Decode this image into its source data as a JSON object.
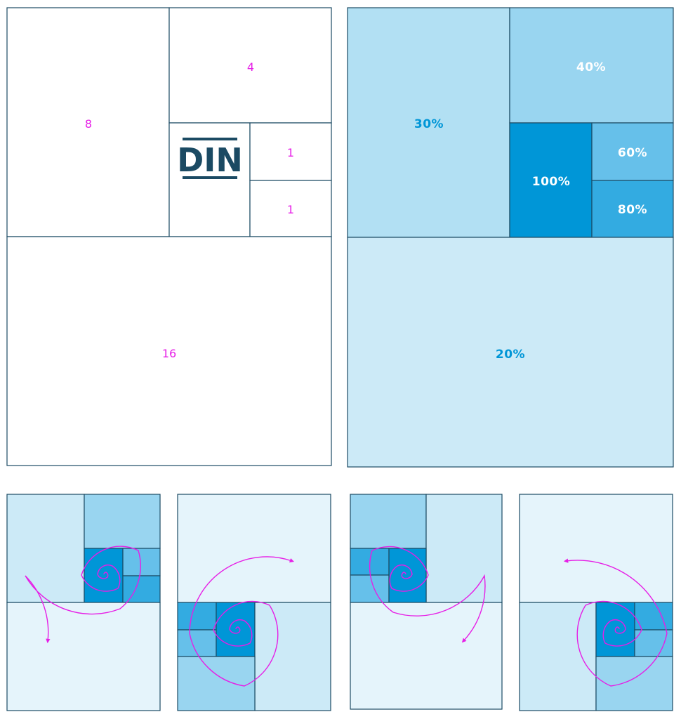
{
  "colors": {
    "line": "#1b4a63",
    "label": "#e61ee6",
    "logo": "#1b4a63",
    "shade_100": "#0096d7",
    "shade_80": "#33abe1",
    "shade_60": "#66c0ea",
    "shade_40": "#99d5f0",
    "shade_30": "#b2e0f3",
    "shade_20": "#cceaf7",
    "shade_10": "#e5f4fb",
    "pct_light_text": "#ffffff",
    "pct_dark_text": "#0096d7",
    "spiral": "#e61ee6"
  },
  "proportion_grid": {
    "logo_text": "DIN",
    "cells": [
      {
        "id": "a",
        "label": "8"
      },
      {
        "id": "b",
        "label": "4"
      },
      {
        "id": "c",
        "label": "1"
      },
      {
        "id": "d",
        "label": "1"
      },
      {
        "id": "e",
        "label": "16"
      }
    ]
  },
  "tint_grid": {
    "cells": [
      {
        "id": "a",
        "label": "30%",
        "shade": "shade_30"
      },
      {
        "id": "b",
        "label": "40%",
        "shade": "shade_40"
      },
      {
        "id": "c",
        "label": "100%",
        "shade": "shade_100"
      },
      {
        "id": "d",
        "label": "60%",
        "shade": "shade_60"
      },
      {
        "id": "e",
        "label": "80%",
        "shade": "shade_80"
      },
      {
        "id": "f",
        "label": "20%",
        "shade": "shade_20"
      }
    ]
  },
  "spiral_variants": [
    {
      "name": "variant-1"
    },
    {
      "name": "variant-2"
    },
    {
      "name": "variant-3"
    },
    {
      "name": "variant-4"
    }
  ]
}
